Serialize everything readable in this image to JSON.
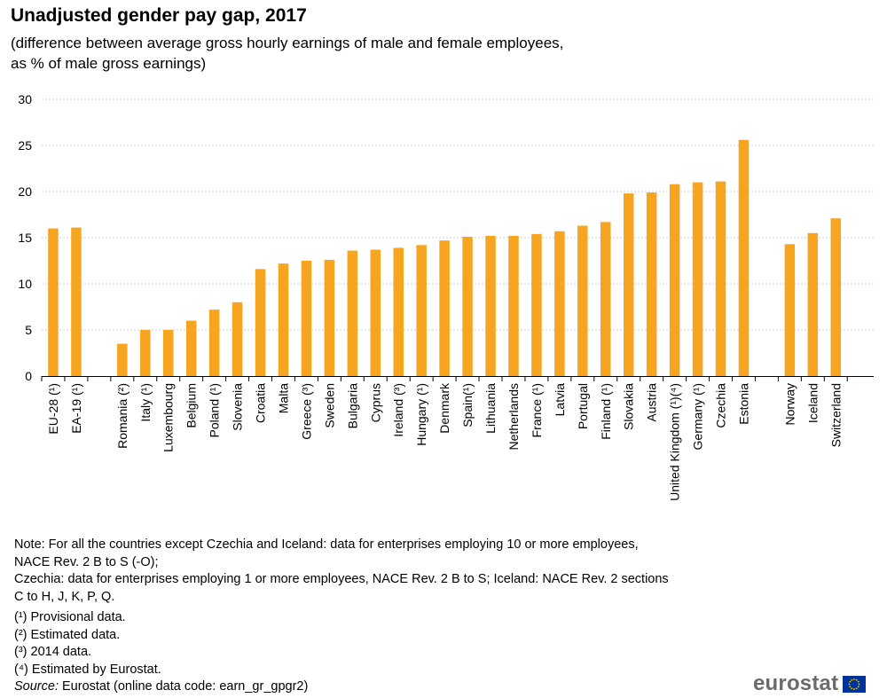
{
  "header": {
    "title": "Unadjusted gender pay gap, 2017",
    "subtitle_line1": "(difference between average gross hourly earnings of male and female employees,",
    "subtitle_line2": "as % of male gross earnings)"
  },
  "colors": {
    "bar": "#F7A521",
    "grid": "#BFBFBF",
    "axis": "#000000",
    "flag": "#003399",
    "stars": "#FFCC00"
  },
  "chart_data": {
    "type": "bar",
    "ylim": [
      0,
      30
    ],
    "yticks": [
      0,
      5,
      10,
      15,
      20,
      25,
      30
    ],
    "grid": true,
    "groups": [
      {
        "categories": [
          "EU-28 (¹)",
          "EA-19 (¹)"
        ],
        "values": [
          16.0,
          16.1
        ]
      },
      {
        "categories": [
          "Romania (²)",
          "Italy (¹)",
          "Luxembourg",
          "Belgium",
          "Poland (¹)",
          "Slovenia",
          "Croatia",
          "Malta",
          "Greece (³)",
          "Sweden",
          "Bulgaria",
          "Cyprus",
          "Ireland (³)",
          "Hungary (¹)",
          "Denmark",
          "Spain(¹)",
          "Lithuania",
          "Netherlands",
          "France (¹)",
          "Latvia",
          "Portugal",
          "Finland (¹)",
          "Slovakia",
          "Austria",
          "United Kingdom (¹)(⁴)",
          "Germany (¹)",
          "Czechia",
          "Estonia"
        ],
        "values": [
          3.5,
          5.0,
          5.0,
          6.0,
          7.2,
          8.0,
          11.6,
          12.2,
          12.5,
          12.6,
          13.6,
          13.7,
          13.9,
          14.2,
          14.7,
          15.1,
          15.2,
          15.2,
          15.4,
          15.7,
          16.3,
          16.7,
          19.8,
          19.9,
          20.8,
          21.0,
          21.1,
          25.6
        ]
      },
      {
        "categories": [
          "Norway",
          "Iceland",
          "Switzerland"
        ],
        "values": [
          14.3,
          15.5,
          17.1
        ]
      }
    ]
  },
  "notes": {
    "line1": "Note: For all the countries except Czechia and Iceland: data for enterprises employing 10 or more employees,",
    "line2": "NACE Rev. 2 B to S (-O);",
    "line3": "Czechia: data for enterprises employing 1 or more employees, NACE Rev. 2 B to S; Iceland: NACE Rev. 2 sections",
    "line4": "C to H, J, K, P, Q.",
    "fn1": "(¹) Provisional data.",
    "fn2": "(²) Estimated data.",
    "fn3": "(³) 2014 data.",
    "fn4": "(⁴) Estimated by Eurostat.",
    "source_label": "Source:",
    "source_text": " Eurostat (online data code: earn_gr_gpgr2)"
  },
  "logo": {
    "text": "eurostat",
    "icon": "eu-flag-icon"
  }
}
